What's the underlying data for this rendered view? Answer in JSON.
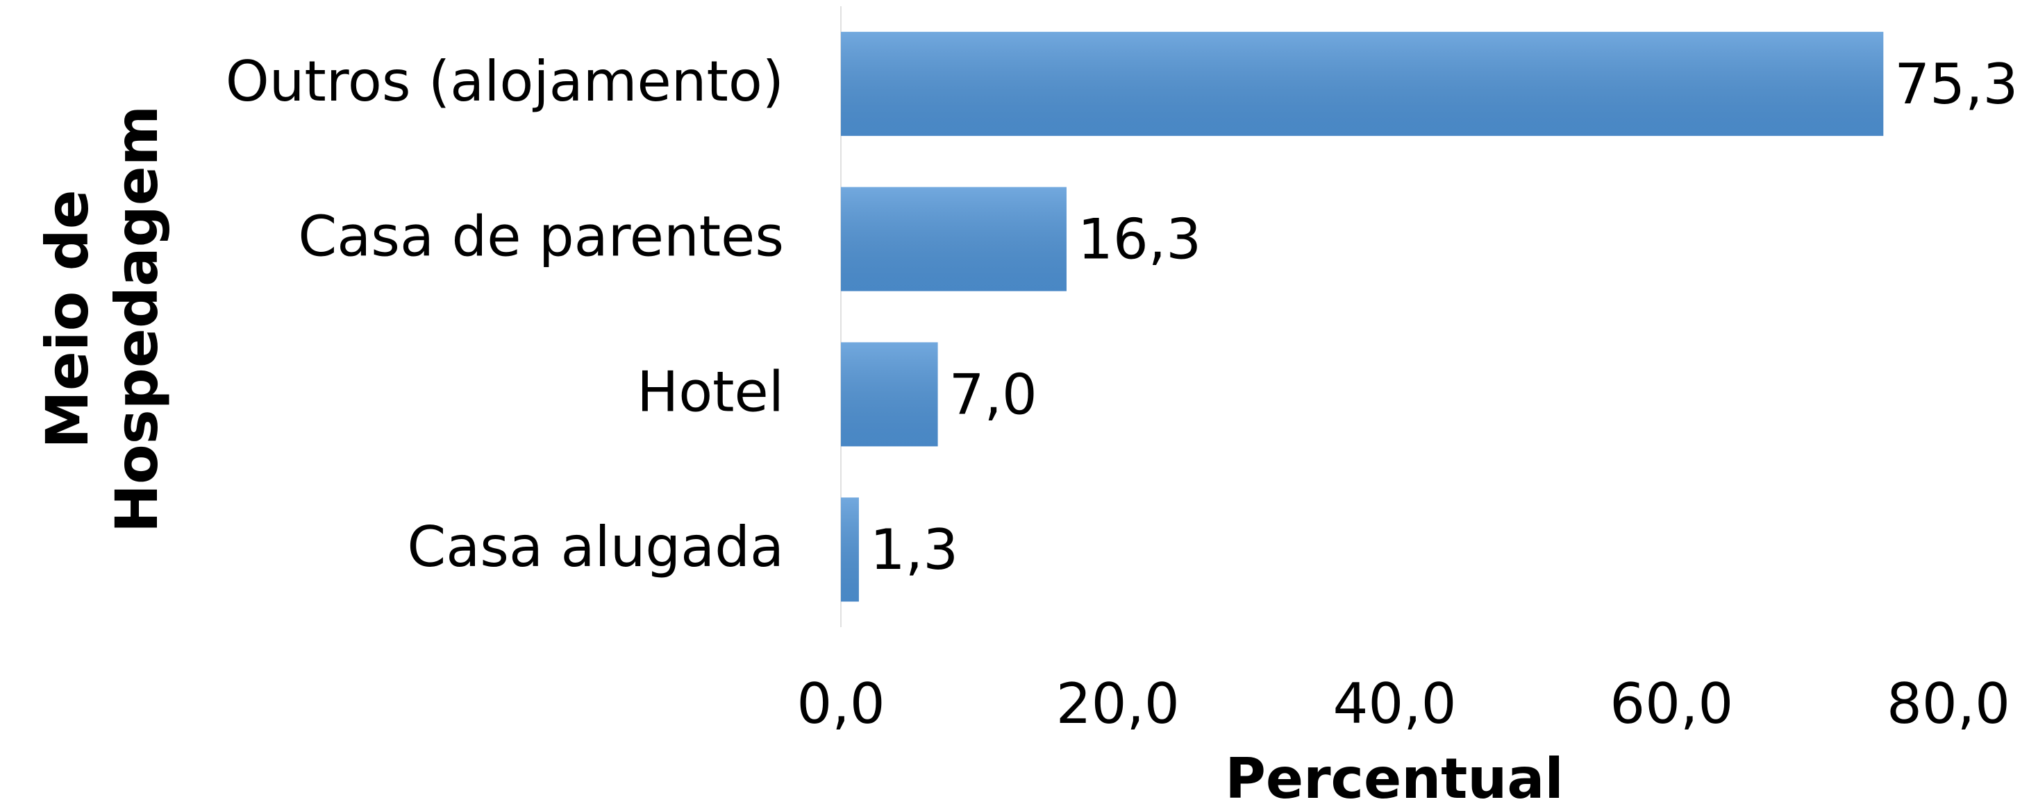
{
  "chart_data": {
    "type": "bar",
    "orientation": "horizontal",
    "x_label": "Percentual",
    "y_label": "Meio de Hospedagem",
    "categories": [
      "Outros (alojamento)",
      "Casa de parentes",
      "Hotel",
      "Casa alugada"
    ],
    "values": [
      75.3,
      16.3,
      7.0,
      1.3
    ],
    "value_labels": [
      "75,3",
      "16,3",
      "7,0",
      "1,3"
    ],
    "color": "#4f93d6",
    "xlim": [
      0,
      80
    ],
    "xticks": [
      {
        "value": 0,
        "label": "0,0"
      },
      {
        "value": 20,
        "label": "20,0"
      },
      {
        "value": 40,
        "label": "40,0"
      },
      {
        "value": 60,
        "label": "60,0"
      },
      {
        "value": 80,
        "label": "80,0"
      }
    ],
    "grid": false
  }
}
